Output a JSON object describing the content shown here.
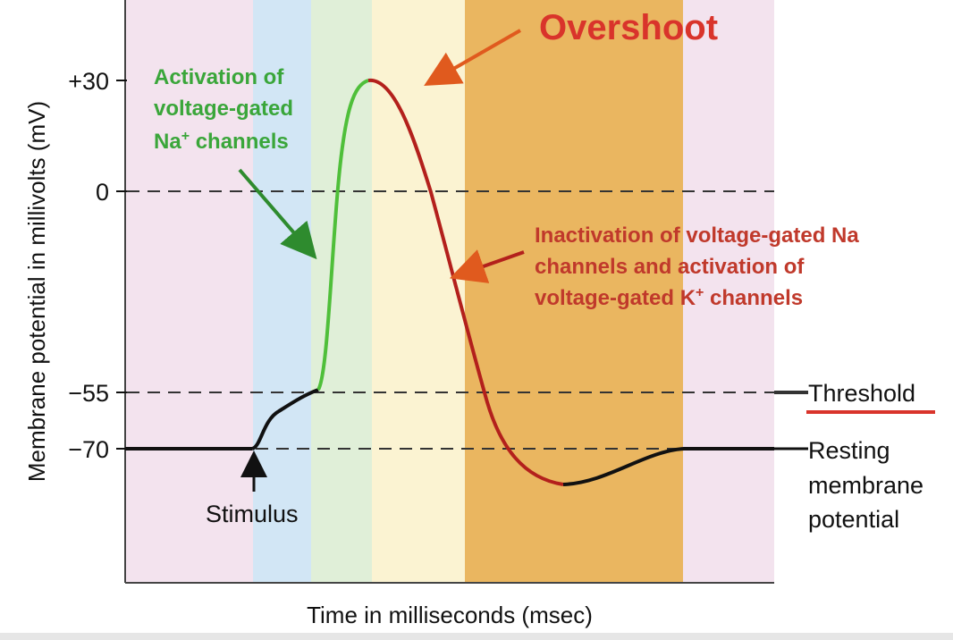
{
  "axes": {
    "ylabel": "Membrane potential in millivolts (mV)",
    "xlabel": "Time in milliseconds (msec)",
    "y_ticks": [
      "+30",
      "0",
      "−55",
      "−70"
    ]
  },
  "levels": {
    "peak_mv": 30,
    "zero_mv": 0,
    "threshold_mv": -55,
    "resting_mv": -70
  },
  "annotations": {
    "overshoot": "Overshoot",
    "activation": {
      "line1": "Activation of",
      "line2": "voltage-gated",
      "line3_base": "Na",
      "line3_sup": "+",
      "line3_rest": " channels"
    },
    "inactivation": {
      "line1": "Inactivation of voltage-gated Na",
      "line2": "channels and activation of",
      "line3_base": "voltage-gated K",
      "line3_sup": "+",
      "line3_rest": " channels"
    },
    "stimulus": "Stimulus",
    "threshold": "Threshold",
    "resting": {
      "line1": "Resting",
      "line2": "membrane",
      "line3": "potential"
    }
  },
  "colors": {
    "phase_pink": "#f3e3ee",
    "phase_blue": "#d2e6f5",
    "phase_green": "#e0efd8",
    "phase_yellow": "#fbf3d2",
    "phase_orange": "#eab660",
    "curve_black": "#111111",
    "curve_green": "#4fbf3a",
    "curve_red": "#b3201c",
    "arrow_green": "#2e8b2e",
    "arrow_red": "#e05a1e",
    "threshold_underline": "#d9342b"
  }
}
